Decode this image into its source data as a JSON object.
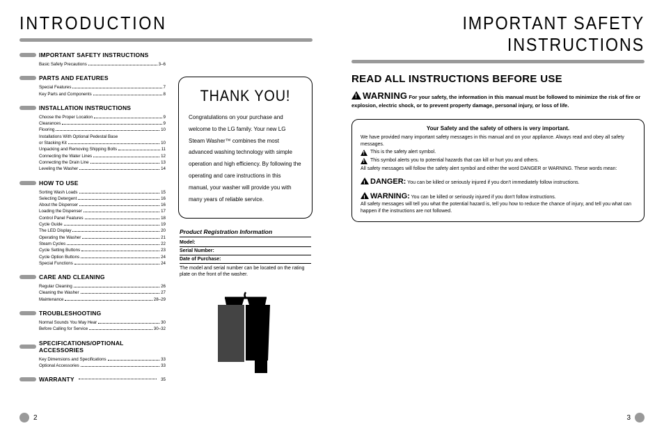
{
  "left": {
    "heading": "INTRODUCTION",
    "toc": [
      {
        "title": "IMPORTANT SAFETY INSTRUCTIONS",
        "items": [
          {
            "label": "Basic Safety Precautions",
            "pg": "3–6"
          }
        ]
      },
      {
        "title": "PARTS AND FEATURES",
        "items": [
          {
            "label": "Special Features",
            "pg": "7"
          },
          {
            "label": "Key Parts and Components",
            "pg": "8"
          }
        ]
      },
      {
        "title": "INSTALLATION INSTRUCTIONS",
        "items": [
          {
            "label": "Choose the Proper Location",
            "pg": "9"
          },
          {
            "label": "Clearances",
            "pg": "9"
          },
          {
            "label": "Flooring",
            "pg": "10"
          },
          {
            "label": "Installations With Optional Pedestal Base",
            "pg": ""
          },
          {
            "label": "or Stacking Kit",
            "pg": "10"
          },
          {
            "label": "Unpacking and Removing Shipping Bolts",
            "pg": "11"
          },
          {
            "label": "Connecting the Water Lines",
            "pg": "12"
          },
          {
            "label": "Connecting the Drain Line",
            "pg": "13"
          },
          {
            "label": "Leveling the Washer",
            "pg": "14"
          }
        ]
      },
      {
        "title": "HOW TO USE",
        "items": [
          {
            "label": "Sorting Wash Loads",
            "pg": "15"
          },
          {
            "label": "Selecting Detergent",
            "pg": "16"
          },
          {
            "label": "About the Dispenser",
            "pg": "16"
          },
          {
            "label": "Loading the Dispenser",
            "pg": "17"
          },
          {
            "label": "Control Panel Features",
            "pg": "18"
          },
          {
            "label": "Cycle Guide",
            "pg": "19"
          },
          {
            "label": "The LED Display",
            "pg": "20"
          },
          {
            "label": "Operating the Washer",
            "pg": "21"
          },
          {
            "label": "Steam Cycles",
            "pg": "22"
          },
          {
            "label": "Cycle Setting Buttons",
            "pg": "23"
          },
          {
            "label": "Cycle Option Buttons",
            "pg": "24"
          },
          {
            "label": "Special Functions",
            "pg": "24"
          }
        ]
      },
      {
        "title": "CARE AND CLEANING",
        "items": [
          {
            "label": "Regular Cleaning",
            "pg": "26"
          },
          {
            "label": "Cleaning the Washer",
            "pg": "27"
          },
          {
            "label": "Maintenance",
            "pg": "28–29"
          }
        ]
      },
      {
        "title": "TROUBLESHOOTING",
        "items": [
          {
            "label": "Normal Sounds You May Hear",
            "pg": "30"
          },
          {
            "label": "Before Calling for Service",
            "pg": "30–32"
          }
        ]
      },
      {
        "title": "SPECIFICATIONS/OPTIONAL ACCESSORIES",
        "items": [
          {
            "label": "Key Dimensions and Specifications",
            "pg": "33"
          },
          {
            "label": "Optional Accessories",
            "pg": "33"
          }
        ]
      },
      {
        "title": "WARRANTY",
        "title_pg": "35",
        "items": []
      }
    ],
    "thank": {
      "title": "THANK YOU!",
      "body": "Congratulations on your purchase and welcome to the LG family. Your new LG Steam Washer™ combines the most advanced washing technology with simple operation and high efficiency. By following the operating and care instructions in this manual, your washer will provide you with many years of reliable service."
    },
    "reg": {
      "title": "Product Registration Information",
      "rows": [
        "Model:",
        "Serial Number:",
        "Date of Purchase:"
      ],
      "note": "The model and serial number can be located on the rating plate on the front of the washer."
    },
    "page_no": "2"
  },
  "right": {
    "heading": "IMPORTANT SAFETY INSTRUCTIONS",
    "read_heading": "READ ALL INSTRUCTIONS BEFORE USE",
    "warning_word": "WARNING",
    "warning_text": " For your safety, the information in this manual must be followed to minimize the risk of fire or explosion, electric shock, or to prevent property damage, personal injury, or loss of life.",
    "box": {
      "top": "Your Safety and the safety of others is very important.",
      "p1": "We have provided many important safety messages in this manual and on your appliance. Always read and obey all safety messages.",
      "t1": "This is the safety alert symbol.",
      "t2": "This symbol alerts you to potential hazards that can kill or hurt you and others.",
      "p2": "All safety messages will follow the safety alert symbol and either the word DANGER or WARNING. These words mean:",
      "danger_word": "DANGER:",
      "danger_text": " You can be killed or seriously injured if you don't immediately follow instructions.",
      "warn_word": "WARNING:",
      "warn_text": " You can be killed or seriously injured if you don't follow instructions.",
      "p3": "All safety messages will tell you what the potential hazard is, tell you how to reduce the chance of injury, and tell you what can happen if the instructions are not followed."
    },
    "page_no": "3"
  }
}
